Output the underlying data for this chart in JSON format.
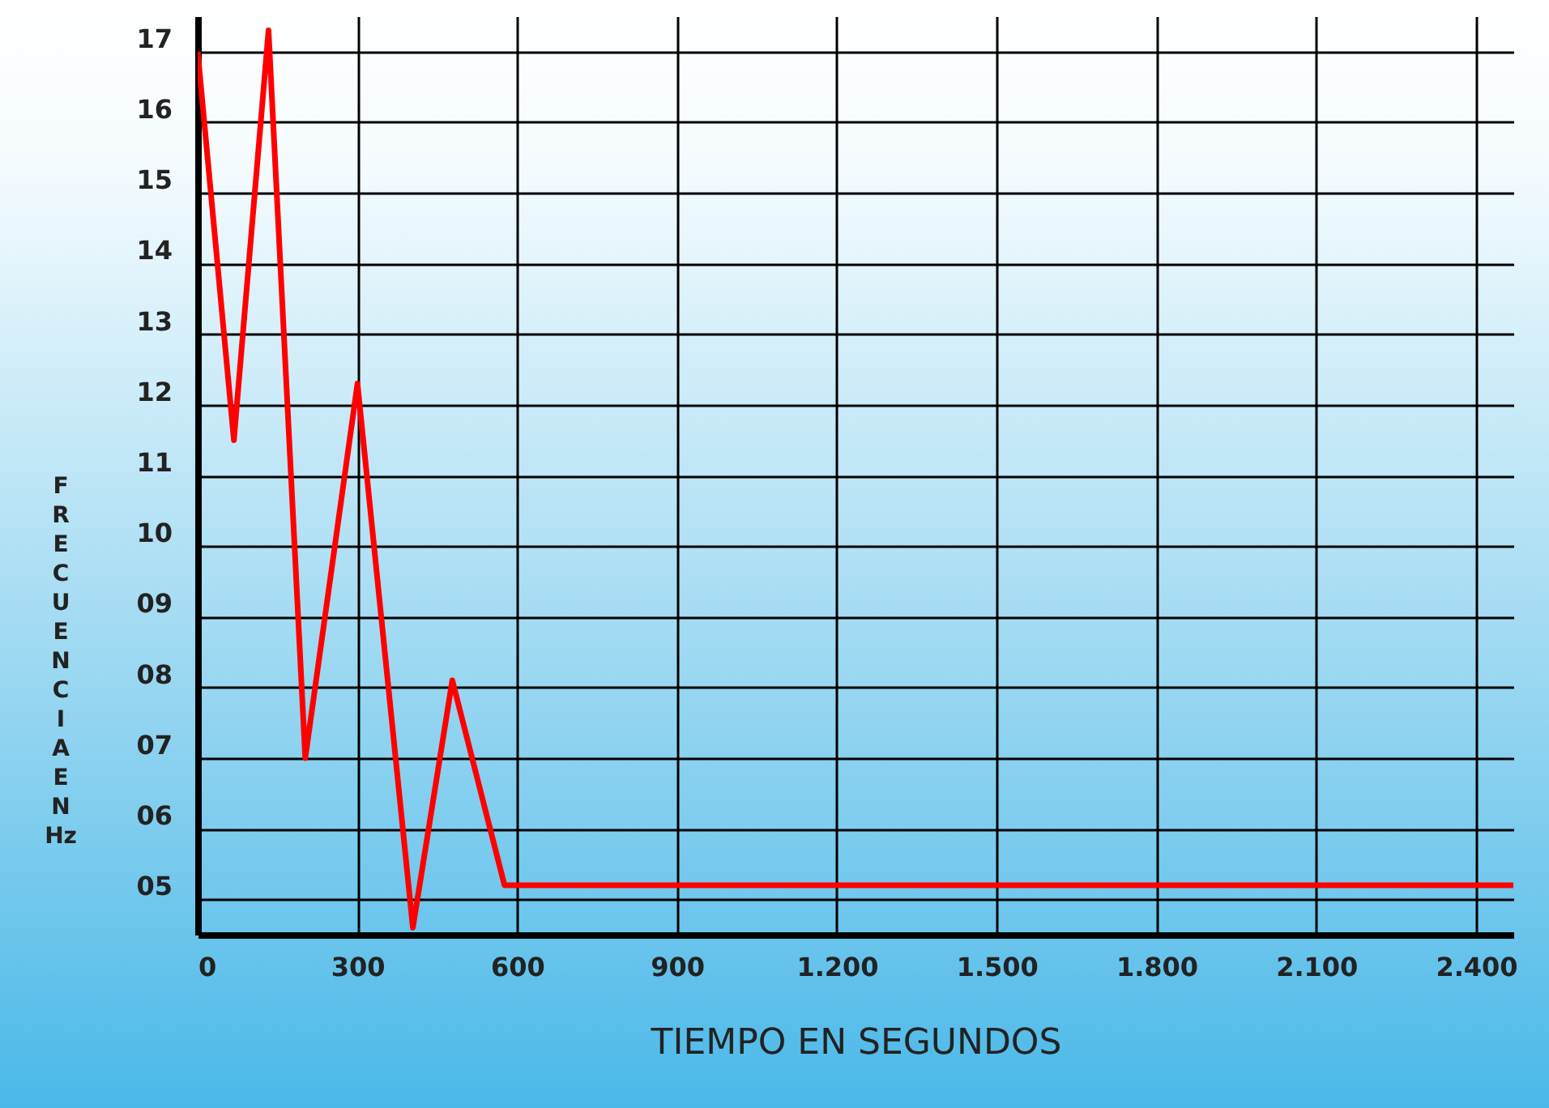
{
  "chart_data": {
    "type": "line",
    "xlabel": "TIEMPO EN SEGUNDOS",
    "ylabel": "FRECUENCIA EN Hz",
    "x": [
      0,
      68,
      133,
      202,
      300,
      404,
      478,
      576,
      2470
    ],
    "series": [
      {
        "color": "#ff0000",
        "values": [
          17.0,
          11.5,
          17.3,
          7.0,
          12.3,
          4.6,
          8.1,
          5.2,
          5.2
        ]
      }
    ],
    "xlim": [
      0,
      2470
    ],
    "ylim": [
      4.5,
      17.5
    ],
    "xticks": [
      0,
      300,
      600,
      900,
      {
        "value": 1200,
        "label": "1.200"
      },
      {
        "value": 1500,
        "label": "1.500"
      },
      {
        "value": 1800,
        "label": "1.800"
      },
      {
        "value": 2100,
        "label": "2.100"
      },
      {
        "value": 2400,
        "label": "2.400"
      }
    ],
    "yticks": [
      {
        "value": 5,
        "label": "05"
      },
      {
        "value": 6,
        "label": "06"
      },
      {
        "value": 7,
        "label": "07"
      },
      {
        "value": 8,
        "label": "08"
      },
      {
        "value": 9,
        "label": "09"
      },
      10,
      11,
      12,
      13,
      14,
      15,
      16,
      17
    ],
    "grid": true,
    "marker": "none",
    "line_style": "solid"
  }
}
